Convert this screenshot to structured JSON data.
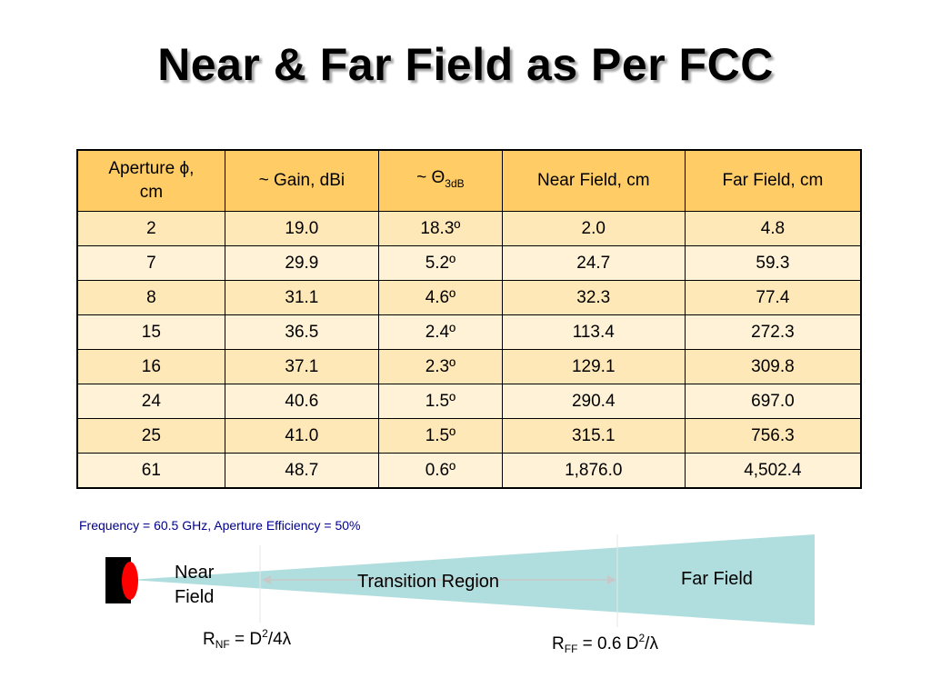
{
  "title": "Near & Far Field as Per FCC",
  "table": {
    "headers": {
      "aperture_line1": "Aperture ϕ,",
      "aperture_line2": "cm",
      "gain": "~ Gain, dBi",
      "theta_prefix": "~ Θ",
      "theta_sub": "3dB",
      "near": "Near Field, cm",
      "far": "Far Field, cm"
    },
    "rows": [
      [
        "2",
        "19.0",
        "18.3º",
        "2.0",
        "4.8"
      ],
      [
        "7",
        "29.9",
        "5.2º",
        "24.7",
        "59.3"
      ],
      [
        "8",
        "31.1",
        "4.6º",
        "32.3",
        "77.4"
      ],
      [
        "15",
        "36.5",
        "2.4º",
        "113.4",
        "272.3"
      ],
      [
        "16",
        "37.1",
        "2.3º",
        "129.1",
        "309.8"
      ],
      [
        "24",
        "40.6",
        "1.5º",
        "290.4",
        "697.0"
      ],
      [
        "25",
        "41.0",
        "1.5º",
        "315.1",
        "756.3"
      ],
      [
        "61",
        "48.7",
        "0.6º",
        "1,876.0",
        "4,502.4"
      ]
    ]
  },
  "footnote": "Frequency = 60.5 GHz, Aperture Efficiency = 50%",
  "diagram": {
    "near_line1": "Near",
    "near_line2": "Field",
    "transition": "Transition Region",
    "far": "Far Field",
    "eq_nf": {
      "r": "R",
      "sub": "NF",
      "mid": " = D",
      "sup": "2",
      "end": "/4λ"
    },
    "eq_ff": {
      "r": "R",
      "sub": "FF",
      "mid": " = 0.6 D",
      "sup": "2",
      "end": "/λ"
    }
  },
  "colors": {
    "header_bg": "#ffcc66",
    "row_bg": "#ffe8b8",
    "row_alt_bg": "#fff2d6",
    "beam": "#b0dede",
    "footnote": "#00008b",
    "dish": "#ff0000"
  }
}
